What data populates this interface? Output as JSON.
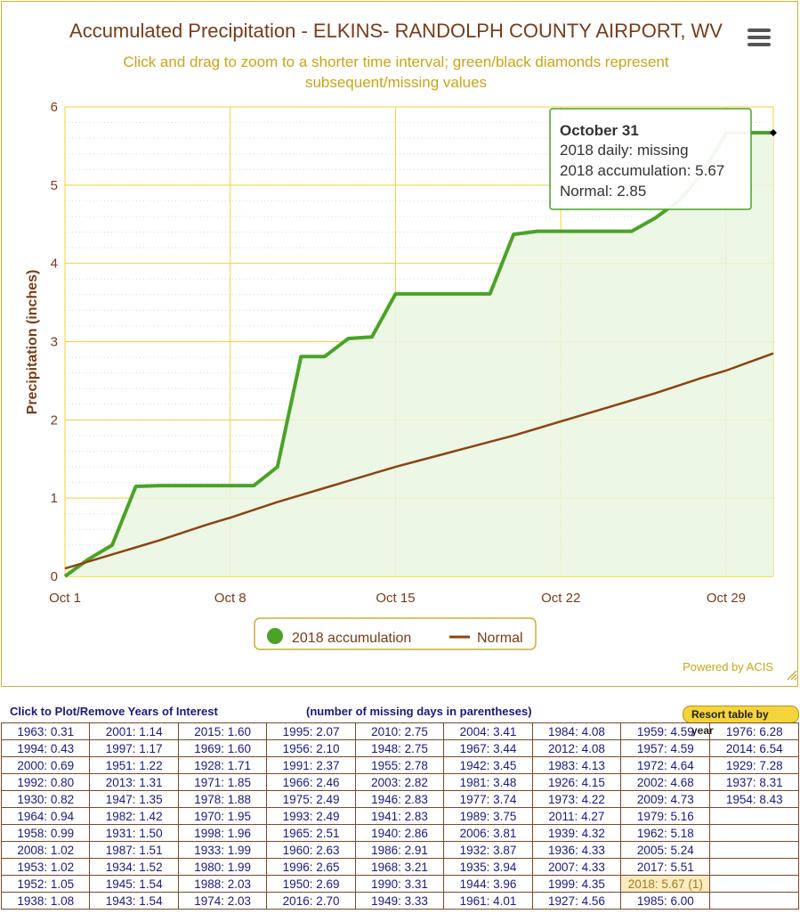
{
  "chart": {
    "title": "Accumulated Precipitation - ELKINS- RANDOLPH COUNTY AIRPORT, WV",
    "subtitle_line1": "Click and drag to zoom to a shorter time interval; green/black diamonds represent",
    "subtitle_line2": "subsequent/missing values",
    "credit": "Powered by ACIS"
  },
  "tooltip": {
    "date": "October 31",
    "line1": "2018 daily: missing",
    "line2": "2018 accumulation: 5.67",
    "line3": "Normal: 2.85"
  },
  "legend": {
    "series1": "2018 accumulation",
    "series2": "Normal"
  },
  "colors": {
    "accumulation": "#4aa326",
    "accumulation_fill": "#eaf6e2",
    "normal": "#8b4513",
    "grid": "#f2d23a",
    "text": "#7a3b18"
  },
  "chart_data": {
    "type": "area",
    "title": "Accumulated Precipitation - ELKINS- RANDOLPH COUNTY AIRPORT, WV",
    "xlabel": "",
    "ylabel": "Precipitation (inches)",
    "ylim": [
      0,
      6
    ],
    "xlim": [
      1,
      31
    ],
    "x_ticks": [
      1,
      8,
      15,
      22,
      29
    ],
    "x_tick_labels": [
      "Oct 1",
      "Oct 8",
      "Oct 15",
      "Oct 22",
      "Oct 29"
    ],
    "y_ticks": [
      0,
      1,
      2,
      3,
      4,
      5,
      6
    ],
    "grid": true,
    "legend_position": "bottom-center",
    "series": [
      {
        "name": "2018 accumulation",
        "type": "area",
        "x": [
          1,
          2,
          3,
          4,
          5,
          6,
          7,
          8,
          9,
          10,
          11,
          12,
          13,
          14,
          15,
          16,
          17,
          18,
          19,
          20,
          21,
          22,
          23,
          24,
          25,
          26,
          27,
          28,
          29,
          30,
          31
        ],
        "values": [
          0.0,
          0.22,
          0.4,
          1.15,
          1.16,
          1.16,
          1.16,
          1.16,
          1.16,
          1.4,
          2.81,
          2.81,
          3.04,
          3.06,
          3.61,
          3.61,
          3.61,
          3.61,
          3.61,
          4.37,
          4.41,
          4.41,
          4.41,
          4.41,
          4.41,
          4.58,
          4.8,
          5.15,
          5.67,
          5.67,
          5.67
        ]
      },
      {
        "name": "Normal",
        "type": "line",
        "x": [
          1,
          2,
          3,
          4,
          5,
          6,
          7,
          8,
          9,
          10,
          11,
          12,
          13,
          14,
          15,
          16,
          17,
          18,
          19,
          20,
          21,
          22,
          23,
          24,
          25,
          26,
          27,
          28,
          29,
          30,
          31
        ],
        "values": [
          0.1,
          0.19,
          0.28,
          0.37,
          0.46,
          0.56,
          0.66,
          0.75,
          0.85,
          0.95,
          1.04,
          1.13,
          1.22,
          1.31,
          1.4,
          1.48,
          1.56,
          1.64,
          1.72,
          1.8,
          1.89,
          1.98,
          2.07,
          2.16,
          2.25,
          2.34,
          2.44,
          2.54,
          2.63,
          2.74,
          2.85
        ]
      }
    ],
    "markers": [
      {
        "x": 31,
        "y": 5.67,
        "shape": "diamond",
        "color": "#000000"
      }
    ]
  },
  "table": {
    "header_left": "Click to Plot/Remove Years of Interest",
    "header_mid": "(number of missing days in parentheses)",
    "resort_label": "Resort table by year",
    "highlight": "2018: 5.67 (1)",
    "columns": [
      [
        "1963: 0.31",
        "1994: 0.43",
        "2000: 0.69",
        "1992: 0.80",
        "1930: 0.82",
        "1964: 0.94",
        "1958: 0.99",
        "2008: 1.02",
        "1953: 1.02",
        "1952: 1.05",
        "1938: 1.08"
      ],
      [
        "2001: 1.14",
        "1997: 1.17",
        "1951: 1.22",
        "2013: 1.31",
        "1947: 1.35",
        "1982: 1.42",
        "1931: 1.50",
        "1987: 1.51",
        "1934: 1.52",
        "1945: 1.54",
        "1943: 1.54"
      ],
      [
        "2015: 1.60",
        "1969: 1.60",
        "1928: 1.71",
        "1971: 1.85",
        "1978: 1.88",
        "1970: 1.95",
        "1998: 1.96",
        "1933: 1.99",
        "1980: 1.99",
        "1988: 2.03",
        "1974: 2.03"
      ],
      [
        "1995: 2.07",
        "1956: 2.10",
        "1991: 2.37",
        "1966: 2.46",
        "1975: 2.49",
        "1993: 2.49",
        "1965: 2.51",
        "1960: 2.63",
        "1996: 2.65",
        "1950: 2.69",
        "2016: 2.70"
      ],
      [
        "2010: 2.75",
        "1948: 2.75",
        "1955: 2.78",
        "2003: 2.82",
        "1946: 2.83",
        "1941: 2.83",
        "1940: 2.86",
        "1986: 2.91",
        "1968: 3.21",
        "1990: 3.31",
        "1949: 3.33"
      ],
      [
        "2004: 3.41",
        "1967: 3.44",
        "1942: 3.45",
        "1981: 3.48",
        "1977: 3.74",
        "1989: 3.75",
        "2006: 3.81",
        "1932: 3.87",
        "1935: 3.94",
        "1944: 3.96",
        "1961: 4.01"
      ],
      [
        "1984: 4.08",
        "2012: 4.08",
        "1983: 4.13",
        "1926: 4.15",
        "1973: 4.22",
        "2011: 4.27",
        "1939: 4.32",
        "1936: 4.33",
        "2007: 4.33",
        "1999: 4.35",
        "1927: 4.56"
      ],
      [
        "1959: 4.59",
        "1957: 4.59",
        "1972: 4.64",
        "2002: 4.68",
        "2009: 4.73",
        "1979: 5.16",
        "1962: 5.18",
        "2005: 5.24",
        "2017: 5.51",
        "2018: 5.67 (1)",
        "1985: 6.00"
      ],
      [
        "1976: 6.28",
        "2014: 6.54",
        "1929: 7.28",
        "1937: 8.31",
        "1954: 8.43",
        "",
        "",
        "",
        "",
        "",
        ""
      ]
    ]
  }
}
